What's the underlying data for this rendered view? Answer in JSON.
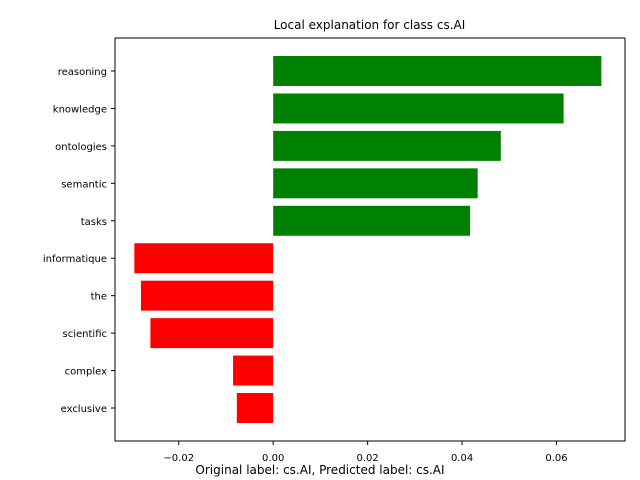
{
  "chart_data": {
    "type": "bar",
    "orientation": "horizontal",
    "title": "Local explanation for class cs.AI",
    "xlabel": "Original label: cs.AI, Predicted label: cs.AI",
    "ylabel": "",
    "categories": [
      "reasoning",
      "knowledge",
      "ontologies",
      "semantic",
      "tasks",
      "informatique",
      "the",
      "scientific",
      "complex",
      "exclusive"
    ],
    "values": [
      0.0695,
      0.0615,
      0.0482,
      0.0433,
      0.0417,
      -0.0294,
      -0.028,
      -0.026,
      -0.0085,
      -0.0077
    ],
    "xlim": [
      -0.0335,
      0.0745
    ],
    "xticks": [
      -0.02,
      0.0,
      0.02,
      0.04,
      0.06
    ],
    "xtick_labels": [
      "−0.02",
      "0.00",
      "0.02",
      "0.04",
      "0.06"
    ],
    "positive_color": "#008000",
    "negative_color": "#ff0000",
    "grid": false,
    "legend": "none"
  }
}
